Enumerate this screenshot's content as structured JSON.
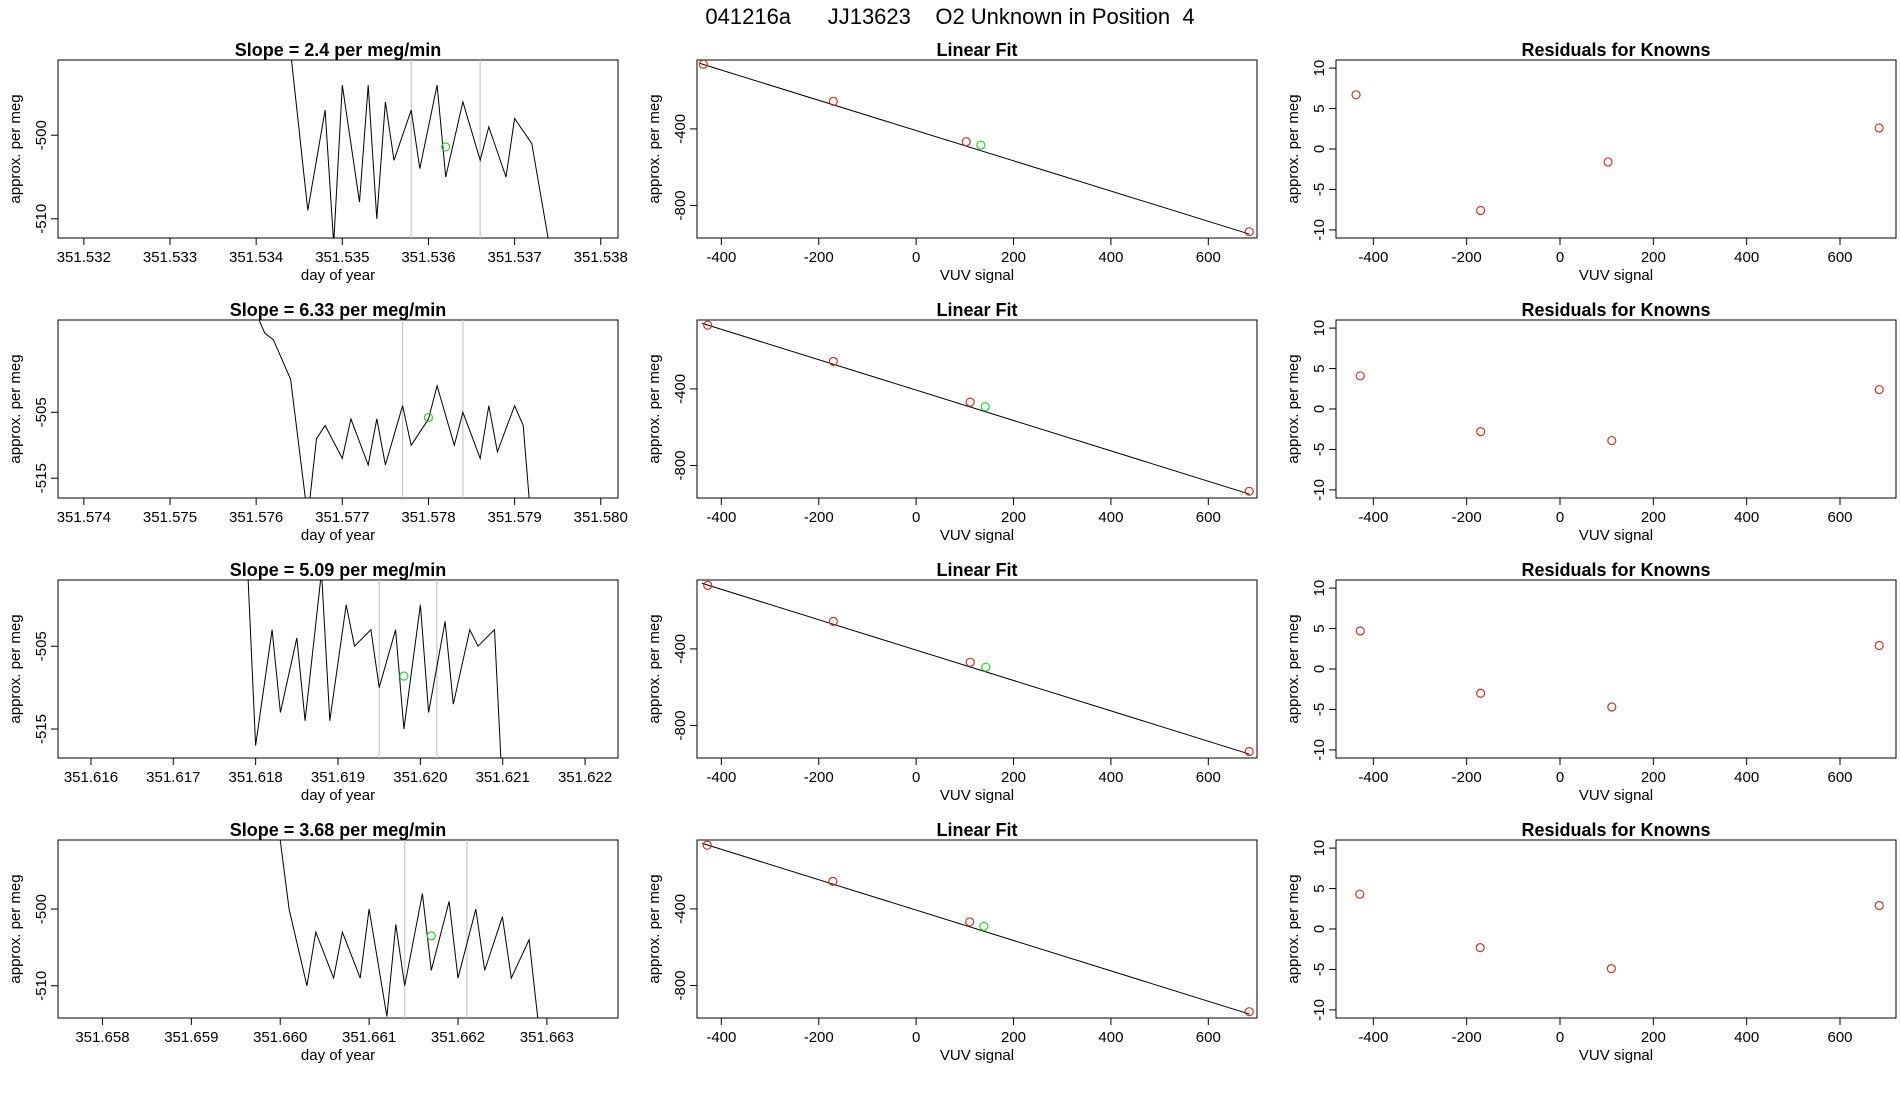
{
  "figure": {
    "title": "041216a      JJ13623    O2 Unknown in Position  4"
  },
  "colors": {
    "line": "#000000",
    "frame": "#000000",
    "marker_unknown": "#33cc33",
    "marker_known": "#c0392b",
    "vline": "#c8c8c8"
  },
  "chart_data": [
    {
      "type": "line",
      "row": 0,
      "col": 0,
      "title": "Slope =  2.4  per meg/min",
      "xlabel": "day of year",
      "ylabel": "approx. per meg",
      "xlim": [
        351.5317,
        351.5382
      ],
      "ylim": [
        -512.3,
        -491.0
      ],
      "xticks": [
        351.532,
        351.533,
        351.534,
        351.535,
        351.536,
        351.537,
        351.538
      ],
      "xtick_labels": [
        "351.532",
        "351.533",
        "351.534",
        "351.535",
        "351.536",
        "351.537",
        "351.538"
      ],
      "yticks": [
        -500,
        -510
      ],
      "ytick_labels": [
        "-500",
        "-510"
      ],
      "series": [
        {
          "name": "signal",
          "x": [
            351.5344,
            351.5346,
            351.5348,
            351.5349,
            351.535,
            351.5352,
            351.5353,
            351.5354,
            351.5355,
            351.5356,
            351.5358,
            351.5359,
            351.5361,
            351.5362,
            351.5364,
            351.5366,
            351.5367,
            351.5369,
            351.537,
            351.5372,
            351.5374
          ],
          "y": [
            -490.0,
            -509.0,
            -497.0,
            -513.0,
            -494.0,
            -508.0,
            -494.0,
            -510.0,
            -496.0,
            -503.0,
            -497.0,
            -504.0,
            -494.0,
            -505.0,
            -496.0,
            -503.0,
            -499.0,
            -505.0,
            -498.0,
            -501.0,
            -513.0
          ]
        }
      ],
      "vlines": [
        351.5358,
        351.5366
      ],
      "points": [
        {
          "x": 351.5362,
          "y": -501.4,
          "role": "unknown"
        }
      ]
    },
    {
      "type": "scatter",
      "row": 0,
      "col": 1,
      "title": "Linear Fit",
      "xlabel": "VUV signal",
      "ylabel": "approx. per meg",
      "xlim": [
        -450,
        700
      ],
      "ylim": [
        -970,
        -40
      ],
      "xticks": [
        -400,
        -200,
        0,
        200,
        400,
        600
      ],
      "xtick_labels": [
        "-400",
        "-200",
        "0",
        "200",
        "400",
        "600"
      ],
      "yticks": [
        -400,
        -800
      ],
      "ytick_labels": [
        "-400",
        "-800"
      ],
      "fit_line": {
        "x": [
          -445,
          685
        ],
        "y": [
          -57,
          -950
        ]
      },
      "points": [
        {
          "x": -437,
          "y": -62,
          "role": "known"
        },
        {
          "x": -170,
          "y": -256,
          "role": "known"
        },
        {
          "x": 103,
          "y": -467,
          "role": "known"
        },
        {
          "x": 684,
          "y": -937,
          "role": "known"
        },
        {
          "x": 133,
          "y": -485,
          "role": "unknown"
        }
      ]
    },
    {
      "type": "scatter",
      "row": 0,
      "col": 2,
      "title": "Residuals for Knowns",
      "xlabel": "VUV signal",
      "ylabel": "approx. per meg",
      "xlim": [
        -480,
        720
      ],
      "ylim": [
        -11,
        11
      ],
      "xticks": [
        -400,
        -200,
        0,
        200,
        400,
        600
      ],
      "xtick_labels": [
        "-400",
        "-200",
        "0",
        "200",
        "400",
        "600"
      ],
      "yticks": [
        10,
        5,
        0,
        -5,
        -10
      ],
      "ytick_labels": [
        "10",
        "5",
        "0",
        "-5",
        "-10"
      ],
      "points": [
        {
          "x": -437,
          "y": 6.7,
          "role": "known"
        },
        {
          "x": -170,
          "y": -7.6,
          "role": "known"
        },
        {
          "x": 103,
          "y": -1.6,
          "role": "known"
        },
        {
          "x": 684,
          "y": 2.6,
          "role": "known"
        }
      ]
    },
    {
      "type": "line",
      "row": 1,
      "col": 0,
      "title": "Slope =  6.33  per meg/min",
      "xlabel": "day of year",
      "ylabel": "approx. per meg",
      "xlim": [
        351.5737,
        351.5802
      ],
      "ylim": [
        -518.0,
        -491.0
      ],
      "xticks": [
        351.574,
        351.575,
        351.576,
        351.577,
        351.578,
        351.579,
        351.58
      ],
      "xtick_labels": [
        "351.574",
        "351.575",
        "351.576",
        "351.577",
        "351.578",
        "351.579",
        "351.580"
      ],
      "yticks": [
        -505,
        -515
      ],
      "ytick_labels": [
        "-505",
        "-515"
      ],
      "series": [
        {
          "name": "signal",
          "x": [
            351.576,
            351.5761,
            351.5762,
            351.5764,
            351.5766,
            351.5767,
            351.5768,
            351.577,
            351.5771,
            351.5773,
            351.5774,
            351.5775,
            351.5777,
            351.5778,
            351.578,
            351.5781,
            351.5783,
            351.5784,
            351.5786,
            351.5787,
            351.5788,
            351.579,
            351.5791,
            351.5792
          ],
          "y": [
            -490.0,
            -493.0,
            -494.0,
            -500.0,
            -521.0,
            -509.0,
            -507.0,
            -512.0,
            -506.0,
            -513.0,
            -506.0,
            -513.0,
            -504.0,
            -510.0,
            -506.0,
            -501.0,
            -510.0,
            -505.0,
            -512.0,
            -504.0,
            -511.0,
            -504.0,
            -507.0,
            -523.0
          ]
        }
      ],
      "vlines": [
        351.5777,
        351.5784
      ],
      "points": [
        {
          "x": 351.578,
          "y": -505.8,
          "role": "unknown"
        }
      ]
    },
    {
      "type": "scatter",
      "row": 1,
      "col": 1,
      "title": "Linear Fit",
      "xlabel": "VUV signal",
      "ylabel": "approx. per meg",
      "xlim": [
        -450,
        700
      ],
      "ylim": [
        -970,
        -40
      ],
      "xticks": [
        -400,
        -200,
        0,
        200,
        400,
        600
      ],
      "xtick_labels": [
        "-400",
        "-200",
        "0",
        "200",
        "400",
        "600"
      ],
      "yticks": [
        -400,
        -800
      ],
      "ytick_labels": [
        "-400",
        "-800"
      ],
      "fit_line": {
        "x": [
          -440,
          685
        ],
        "y": [
          -57,
          -950
        ]
      },
      "points": [
        {
          "x": -428,
          "y": -67,
          "role": "known"
        },
        {
          "x": -170,
          "y": -256,
          "role": "known"
        },
        {
          "x": 111,
          "y": -469,
          "role": "known"
        },
        {
          "x": 684,
          "y": -935,
          "role": "known"
        },
        {
          "x": 142,
          "y": -493,
          "role": "unknown"
        }
      ]
    },
    {
      "type": "scatter",
      "row": 1,
      "col": 2,
      "title": "Residuals for Knowns",
      "xlabel": "VUV signal",
      "ylabel": "approx. per meg",
      "xlim": [
        -480,
        720
      ],
      "ylim": [
        -11,
        11
      ],
      "xticks": [
        -400,
        -200,
        0,
        200,
        400,
        600
      ],
      "xtick_labels": [
        "-400",
        "-200",
        "0",
        "200",
        "400",
        "600"
      ],
      "yticks": [
        10,
        5,
        0,
        -5,
        -10
      ],
      "ytick_labels": [
        "10",
        "5",
        "0",
        "-5",
        "-10"
      ],
      "points": [
        {
          "x": -428,
          "y": 4.1,
          "role": "known"
        },
        {
          "x": -170,
          "y": -2.8,
          "role": "known"
        },
        {
          "x": 111,
          "y": -3.9,
          "role": "known"
        },
        {
          "x": 684,
          "y": 2.4,
          "role": "known"
        }
      ]
    },
    {
      "type": "line",
      "row": 2,
      "col": 0,
      "title": "Slope =  5.09  per meg/min",
      "xlabel": "day of year",
      "ylabel": "approx. per meg",
      "xlim": [
        351.6156,
        351.6224
      ],
      "ylim": [
        -518.5,
        -497.0
      ],
      "xticks": [
        351.616,
        351.617,
        351.618,
        351.619,
        351.62,
        351.621,
        351.622
      ],
      "xtick_labels": [
        "351.616",
        "351.617",
        "351.618",
        "351.619",
        "351.620",
        "351.621",
        "351.622"
      ],
      "yticks": [
        -505,
        -515
      ],
      "ytick_labels": [
        "-505",
        "-515"
      ],
      "series": [
        {
          "name": "signal",
          "x": [
            351.6179,
            351.618,
            351.6182,
            351.6183,
            351.6185,
            351.6186,
            351.6188,
            351.6189,
            351.6191,
            351.6192,
            351.6194,
            351.6195,
            351.6197,
            351.6198,
            351.62,
            351.6201,
            351.6203,
            351.6204,
            351.6206,
            351.6207,
            351.6209,
            351.621
          ],
          "y": [
            -495.0,
            -517.0,
            -503.0,
            -513.0,
            -504.0,
            -514.0,
            -496.0,
            -514.0,
            -500.0,
            -505.0,
            -503.0,
            -510.0,
            -503.0,
            -515.0,
            -500.0,
            -513.0,
            -502.0,
            -512.0,
            -503.0,
            -505.0,
            -503.0,
            -523.0
          ]
        }
      ],
      "vlines": [
        351.6195,
        351.6202
      ],
      "points": [
        {
          "x": 351.6198,
          "y": -508.6,
          "role": "unknown"
        }
      ]
    },
    {
      "type": "scatter",
      "row": 2,
      "col": 1,
      "title": "Linear Fit",
      "xlabel": "VUV signal",
      "ylabel": "approx. per meg",
      "xlim": [
        -450,
        700
      ],
      "ylim": [
        -970,
        -40
      ],
      "xticks": [
        -400,
        -200,
        0,
        200,
        400,
        600
      ],
      "xtick_labels": [
        "-400",
        "-200",
        "0",
        "200",
        "400",
        "600"
      ],
      "yticks": [
        -400,
        -800
      ],
      "ytick_labels": [
        "-400",
        "-800"
      ],
      "fit_line": {
        "x": [
          -440,
          685
        ],
        "y": [
          -57,
          -950
        ]
      },
      "points": [
        {
          "x": -428,
          "y": -68,
          "role": "known"
        },
        {
          "x": -170,
          "y": -256,
          "role": "known"
        },
        {
          "x": 111,
          "y": -470,
          "role": "known"
        },
        {
          "x": 684,
          "y": -936,
          "role": "known"
        },
        {
          "x": 143,
          "y": -495,
          "role": "unknown"
        }
      ]
    },
    {
      "type": "scatter",
      "row": 2,
      "col": 2,
      "title": "Residuals for Knowns",
      "xlabel": "VUV signal",
      "ylabel": "approx. per meg",
      "xlim": [
        -480,
        720
      ],
      "ylim": [
        -11,
        11
      ],
      "xticks": [
        -400,
        -200,
        0,
        200,
        400,
        600
      ],
      "xtick_labels": [
        "-400",
        "-200",
        "0",
        "200",
        "400",
        "600"
      ],
      "yticks": [
        10,
        5,
        0,
        -5,
        -10
      ],
      "ytick_labels": [
        "10",
        "5",
        "0",
        "-5",
        "-10"
      ],
      "points": [
        {
          "x": -428,
          "y": 4.7,
          "role": "known"
        },
        {
          "x": -170,
          "y": -3.0,
          "role": "known"
        },
        {
          "x": 111,
          "y": -4.7,
          "role": "known"
        },
        {
          "x": 684,
          "y": 2.9,
          "role": "known"
        }
      ]
    },
    {
      "type": "line",
      "row": 3,
      "col": 0,
      "title": "Slope =  3.68  per meg/min",
      "xlabel": "day of year",
      "ylabel": "approx. per meg",
      "xlim": [
        351.6575,
        351.6638
      ],
      "ylim": [
        -514.2,
        -491.0
      ],
      "xticks": [
        351.658,
        351.659,
        351.66,
        351.661,
        351.662,
        351.663
      ],
      "xtick_labels": [
        "351.658",
        "351.659",
        "351.660",
        "351.661",
        "351.662",
        "351.663"
      ],
      "yticks": [
        -500,
        -510
      ],
      "ytick_labels": [
        "-500",
        "-510"
      ],
      "series": [
        {
          "name": "signal",
          "x": [
            351.66,
            351.6601,
            351.6603,
            351.6604,
            351.6606,
            351.6607,
            351.6609,
            351.661,
            351.6612,
            351.6613,
            351.6614,
            351.6616,
            351.6617,
            351.6619,
            351.662,
            351.6622,
            351.6623,
            351.6625,
            351.6626,
            351.6628,
            351.6629
          ],
          "y": [
            -491.0,
            -500.0,
            -510.0,
            -503.0,
            -509.0,
            -503.0,
            -509.0,
            -500.0,
            -514.0,
            -502.0,
            -510.0,
            -498.0,
            -508.0,
            -499.0,
            -509.0,
            -500.0,
            -508.0,
            -501.0,
            -509.0,
            -504.0,
            -514.5
          ]
        }
      ],
      "vlines": [
        351.6614,
        351.6621
      ],
      "points": [
        {
          "x": 351.6617,
          "y": -503.5,
          "role": "unknown"
        }
      ]
    },
    {
      "type": "scatter",
      "row": 3,
      "col": 1,
      "title": "Linear Fit",
      "xlabel": "VUV signal",
      "ylabel": "approx. per meg",
      "xlim": [
        -450,
        700
      ],
      "ylim": [
        -970,
        -40
      ],
      "xticks": [
        -400,
        -200,
        0,
        200,
        400,
        600
      ],
      "xtick_labels": [
        "-400",
        "-200",
        "0",
        "200",
        "400",
        "600"
      ],
      "yticks": [
        -400,
        -800
      ],
      "ytick_labels": [
        "-400",
        "-800"
      ],
      "fit_line": {
        "x": [
          -440,
          685
        ],
        "y": [
          -57,
          -950
        ]
      },
      "points": [
        {
          "x": -429,
          "y": -67,
          "role": "known"
        },
        {
          "x": -171,
          "y": -256,
          "role": "known"
        },
        {
          "x": 110,
          "y": -468,
          "role": "known"
        },
        {
          "x": 684,
          "y": -937,
          "role": "known"
        },
        {
          "x": 139,
          "y": -491,
          "role": "unknown"
        }
      ]
    },
    {
      "type": "scatter",
      "row": 3,
      "col": 2,
      "title": "Residuals for Knowns",
      "xlabel": "VUV signal",
      "ylabel": "approx. per meg",
      "xlim": [
        -480,
        720
      ],
      "ylim": [
        -11,
        11
      ],
      "xticks": [
        -400,
        -200,
        0,
        200,
        400,
        600
      ],
      "xtick_labels": [
        "-400",
        "-200",
        "0",
        "200",
        "400",
        "600"
      ],
      "yticks": [
        10,
        5,
        0,
        -5,
        -10
      ],
      "ytick_labels": [
        "10",
        "5",
        "0",
        "-5",
        "-10"
      ],
      "points": [
        {
          "x": -429,
          "y": 4.3,
          "role": "known"
        },
        {
          "x": -171,
          "y": -2.3,
          "role": "known"
        },
        {
          "x": 110,
          "y": -4.9,
          "role": "known"
        },
        {
          "x": 684,
          "y": 2.9,
          "role": "known"
        }
      ]
    }
  ]
}
